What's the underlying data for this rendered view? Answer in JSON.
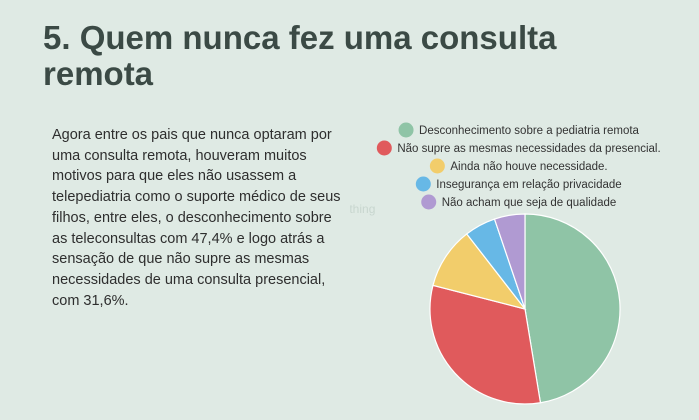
{
  "slide": {
    "title": "5. Quem nunca fez uma consulta remota",
    "body": "Agora entre os pais que nunca optaram por uma consulta remota, houveram muitos motivos para que eles não usassem a telepediatria como o suporte médico de seus filhos, entre eles, o desconhecimento sobre as teleconsultas com 47,4% e logo atrás a sensação de que não supre as mesmas necessidades de uma consulta presencial, com 31,6%.",
    "watermark": "something"
  },
  "chart_data": {
    "type": "pie",
    "title": "",
    "legend_position": "top",
    "slices": [
      {
        "label": "Desconhecimento sobre a pediatria remota",
        "value": 47.4,
        "color": "#8fc4a6"
      },
      {
        "label": "Não supre as mesmas necessidades da presencial.",
        "value": 31.6,
        "color": "#e05a5c"
      },
      {
        "label": "Ainda não houve necessidade.",
        "value": 10.5,
        "color": "#f2cd6b"
      },
      {
        "label": "Insegurança em relação privacidade",
        "value": 5.3,
        "color": "#67b8e6"
      },
      {
        "label": "Não acham que seja de qualidade",
        "value": 5.2,
        "color": "#b09ad2"
      }
    ]
  }
}
